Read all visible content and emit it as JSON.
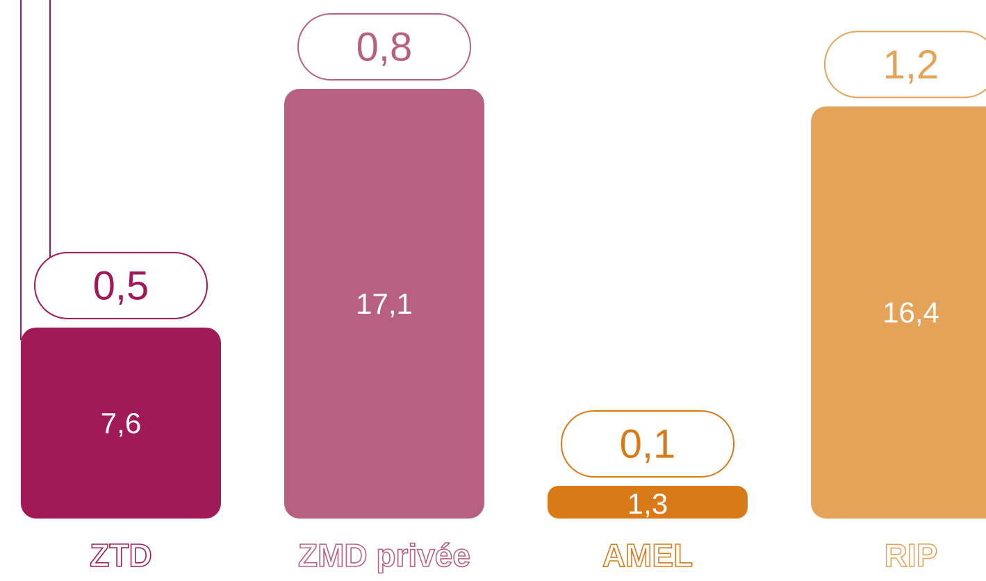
{
  "chart_data": {
    "type": "bar",
    "categories": [
      "ZTD",
      "ZMD privée",
      "AMEL",
      "RIP"
    ],
    "colors": [
      "#a01a58",
      "#b86080",
      "#d97a18",
      "#e5a35a"
    ],
    "series": [
      {
        "values": [
          7.6,
          17.1,
          1.3,
          16.4
        ],
        "value_labels": [
          "7,6",
          "17,1",
          "1,3",
          "16,4"
        ]
      },
      {
        "values": [
          0.5,
          0.8,
          0.1,
          1.2
        ],
        "value_labels": [
          "0,5",
          "0,8",
          "0,1",
          "1,2"
        ]
      }
    ]
  }
}
